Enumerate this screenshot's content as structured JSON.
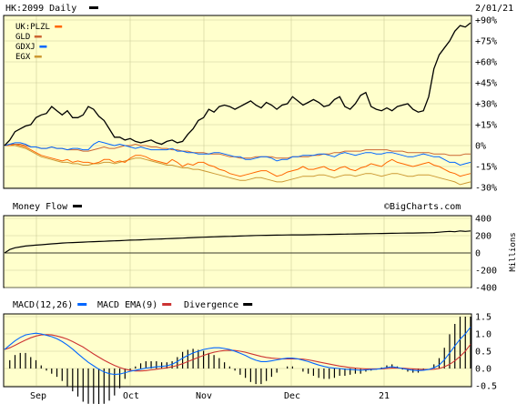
{
  "colors": {
    "panel_bg": "#ffffcc",
    "frame": "#000000",
    "grid": "#cccc99",
    "black": "#000000",
    "orange": "#ff6600",
    "salmon": "#cc6633",
    "blue": "#0066ff",
    "olive": "#cc9933",
    "macd_ema_line": "#cc3333"
  },
  "header": {
    "symbol_label": "HK:2099 Daily",
    "date_label": "2/01/21",
    "watermark": "©BigCharts.com"
  },
  "chart_data": [
    {
      "type": "line",
      "panel": "price",
      "legend": [
        "UK:PLZL",
        "GLD",
        "GDXJ",
        "EGX"
      ],
      "yaxis_labels": [
        "+90%",
        "+75%",
        "+60%",
        "+45%",
        "+30%",
        "+15%",
        "0%",
        "-15%",
        "-30%"
      ],
      "ylim": [
        -30,
        90
      ],
      "xaxis_labels": [
        "Sep",
        "Oct",
        "Nov",
        "Dec",
        "21"
      ],
      "series": [
        {
          "name": "HK:2099",
          "color": "black",
          "values": [
            0,
            4,
            10,
            12,
            14,
            15,
            20,
            22,
            23,
            28,
            25,
            22,
            25,
            20,
            20,
            22,
            28,
            26,
            21,
            18,
            12,
            6,
            6,
            4,
            5,
            3,
            2,
            3,
            4,
            2,
            1,
            3,
            4,
            2,
            3,
            8,
            12,
            18,
            20,
            26,
            24,
            28,
            29,
            28,
            26,
            28,
            30,
            32,
            29,
            27,
            31,
            29,
            26,
            29,
            30,
            35,
            32,
            29,
            31,
            33,
            31,
            28,
            29,
            33,
            35,
            28,
            26,
            30,
            36,
            38,
            28,
            26,
            25,
            27,
            25,
            28,
            29,
            30,
            26,
            24,
            25,
            35,
            55,
            65,
            70,
            75,
            82,
            86,
            85,
            88
          ]
        },
        {
          "name": "UK:PLZL",
          "color": "orange",
          "values": [
            0,
            0,
            1,
            0,
            -1,
            -3,
            -5,
            -7,
            -8,
            -9,
            -10,
            -11,
            -10,
            -12,
            -11,
            -12,
            -12,
            -13,
            -12,
            -10,
            -10,
            -12,
            -11,
            -12,
            -9,
            -7,
            -7,
            -8,
            -10,
            -11,
            -12,
            -13,
            -10,
            -12,
            -15,
            -13,
            -14,
            -12,
            -12,
            -14,
            -15,
            -17,
            -18,
            -20,
            -21,
            -22,
            -21,
            -20,
            -19,
            -18,
            -18,
            -20,
            -22,
            -21,
            -19,
            -18,
            -17,
            -15,
            -17,
            -17,
            -16,
            -15,
            -17,
            -18,
            -16,
            -15,
            -17,
            -18,
            -16,
            -15,
            -13,
            -14,
            -15,
            -12,
            -10,
            -12,
            -13,
            -14,
            -15,
            -14,
            -13,
            -12,
            -14,
            -15,
            -17,
            -19,
            -20,
            -22,
            -21,
            -20
          ]
        },
        {
          "name": "GLD",
          "color": "salmon",
          "values": [
            0,
            1,
            1,
            1,
            0,
            -1,
            -1,
            -2,
            -2,
            -1,
            -2,
            -2,
            -3,
            -3,
            -3,
            -4,
            -4,
            -3,
            -2,
            -1,
            -2,
            -2,
            -1,
            0,
            0,
            1,
            0,
            0,
            -1,
            -1,
            -2,
            -2,
            -3,
            -3,
            -4,
            -4,
            -5,
            -5,
            -5,
            -6,
            -6,
            -6,
            -7,
            -8,
            -8,
            -9,
            -9,
            -9,
            -8,
            -8,
            -8,
            -8,
            -9,
            -9,
            -9,
            -8,
            -8,
            -8,
            -8,
            -7,
            -7,
            -6,
            -6,
            -5,
            -5,
            -4,
            -4,
            -4,
            -4,
            -3,
            -3,
            -3,
            -3,
            -3,
            -4,
            -4,
            -4,
            -5,
            -5,
            -5,
            -5,
            -5,
            -6,
            -6,
            -6,
            -7,
            -7,
            -7,
            -6,
            -6
          ]
        },
        {
          "name": "GDXJ",
          "color": "blue",
          "values": [
            0,
            1,
            2,
            2,
            1,
            -1,
            -1,
            -2,
            -2,
            -1,
            -2,
            -2,
            -3,
            -2,
            -2,
            -3,
            -3,
            1,
            3,
            2,
            1,
            0,
            1,
            0,
            -1,
            -2,
            -1,
            -2,
            -3,
            -3,
            -3,
            -3,
            -2,
            -4,
            -4,
            -5,
            -5,
            -6,
            -6,
            -6,
            -5,
            -5,
            -6,
            -7,
            -8,
            -8,
            -10,
            -10,
            -9,
            -8,
            -8,
            -9,
            -11,
            -10,
            -10,
            -8,
            -8,
            -7,
            -7,
            -7,
            -6,
            -6,
            -7,
            -8,
            -6,
            -5,
            -6,
            -7,
            -6,
            -5,
            -5,
            -6,
            -6,
            -5,
            -5,
            -6,
            -7,
            -8,
            -8,
            -7,
            -6,
            -7,
            -8,
            -8,
            -10,
            -12,
            -12,
            -14,
            -13,
            -12
          ]
        },
        {
          "name": "EGX",
          "color": "olive",
          "values": [
            0,
            0,
            0,
            -1,
            -2,
            -4,
            -6,
            -8,
            -9,
            -10,
            -11,
            -12,
            -12,
            -13,
            -13,
            -14,
            -14,
            -13,
            -13,
            -12,
            -12,
            -13,
            -12,
            -11,
            -10,
            -9,
            -9,
            -10,
            -11,
            -12,
            -13,
            -14,
            -14,
            -15,
            -16,
            -16,
            -17,
            -17,
            -18,
            -19,
            -20,
            -21,
            -22,
            -23,
            -24,
            -25,
            -25,
            -24,
            -23,
            -23,
            -24,
            -25,
            -26,
            -26,
            -25,
            -24,
            -23,
            -22,
            -22,
            -22,
            -21,
            -21,
            -22,
            -23,
            -22,
            -21,
            -21,
            -22,
            -21,
            -20,
            -20,
            -21,
            -22,
            -21,
            -20,
            -20,
            -21,
            -22,
            -22,
            -21,
            -21,
            -21,
            -22,
            -23,
            -24,
            -25,
            -26,
            -28,
            -27,
            -26
          ]
        }
      ]
    },
    {
      "type": "line",
      "panel": "money_flow",
      "title": "Money Flow",
      "yaxis_labels": [
        "400",
        "200",
        "0",
        "-200",
        "-400"
      ],
      "yaxis_unit": "Millions",
      "ylim": [
        -400,
        400
      ],
      "series": [
        {
          "name": "Money Flow",
          "color": "black",
          "values": [
            0,
            40,
            60,
            70,
            80,
            85,
            90,
            95,
            100,
            105,
            110,
            115,
            118,
            120,
            122,
            125,
            128,
            130,
            133,
            135,
            138,
            140,
            142,
            145,
            148,
            150,
            152,
            155,
            158,
            160,
            162,
            165,
            167,
            170,
            172,
            175,
            178,
            180,
            182,
            184,
            186,
            188,
            190,
            192,
            194,
            196,
            198,
            200,
            202,
            203,
            204,
            205,
            206,
            207,
            208,
            209,
            210,
            210,
            211,
            212,
            213,
            214,
            215,
            216,
            217,
            218,
            219,
            220,
            221,
            222,
            223,
            224,
            225,
            226,
            227,
            228,
            229,
            230,
            231,
            232,
            233,
            234,
            236,
            240,
            245,
            250,
            245,
            255,
            250,
            255
          ]
        }
      ]
    },
    {
      "type": "bar",
      "panel": "macd",
      "legend": [
        "MACD(12,26)",
        "MACD EMA(9)",
        "Divergence"
      ],
      "yaxis_labels": [
        "1.5",
        "1.0",
        "0.5",
        "0.0",
        "-0.5"
      ],
      "ylim": [
        -0.5,
        1.5
      ],
      "series": [
        {
          "name": "MACD(12,26)",
          "color": "blue",
          "values": [
            0.55,
            0.68,
            0.8,
            0.9,
            0.97,
            1.0,
            1.02,
            1.0,
            0.96,
            0.92,
            0.86,
            0.78,
            0.68,
            0.56,
            0.43,
            0.3,
            0.18,
            0.08,
            -0.02,
            -0.1,
            -0.15,
            -0.17,
            -0.16,
            -0.12,
            -0.08,
            -0.05,
            -0.02,
            0.01,
            0.03,
            0.05,
            0.06,
            0.08,
            0.12,
            0.2,
            0.3,
            0.38,
            0.45,
            0.5,
            0.55,
            0.58,
            0.6,
            0.6,
            0.58,
            0.55,
            0.5,
            0.44,
            0.38,
            0.3,
            0.24,
            0.2,
            0.2,
            0.22,
            0.25,
            0.28,
            0.3,
            0.3,
            0.28,
            0.24,
            0.2,
            0.15,
            0.1,
            0.06,
            0.03,
            0.01,
            0.0,
            -0.02,
            -0.03,
            -0.04,
            -0.05,
            -0.04,
            -0.03,
            -0.02,
            0.0,
            0.03,
            0.05,
            0.03,
            0.0,
            -0.03,
            -0.05,
            -0.06,
            -0.05,
            -0.03,
            0.02,
            0.1,
            0.25,
            0.45,
            0.65,
            0.85,
            1.0,
            1.2
          ]
        },
        {
          "name": "MACD EMA(9)",
          "color": "macd_ema_line",
          "values": [
            0.55,
            0.6,
            0.67,
            0.75,
            0.82,
            0.89,
            0.94,
            0.97,
            0.98,
            0.97,
            0.94,
            0.9,
            0.85,
            0.78,
            0.7,
            0.62,
            0.52,
            0.42,
            0.33,
            0.24,
            0.16,
            0.09,
            0.03,
            -0.02,
            -0.05,
            -0.07,
            -0.07,
            -0.06,
            -0.04,
            -0.02,
            0.0,
            0.02,
            0.05,
            0.09,
            0.14,
            0.2,
            0.26,
            0.32,
            0.38,
            0.43,
            0.47,
            0.5,
            0.52,
            0.53,
            0.52,
            0.5,
            0.47,
            0.43,
            0.39,
            0.35,
            0.32,
            0.3,
            0.29,
            0.28,
            0.28,
            0.28,
            0.28,
            0.27,
            0.25,
            0.22,
            0.19,
            0.16,
            0.13,
            0.1,
            0.07,
            0.05,
            0.03,
            0.01,
            0.0,
            -0.01,
            -0.01,
            -0.01,
            -0.01,
            0.0,
            0.01,
            0.01,
            0.01,
            0.0,
            -0.01,
            -0.02,
            -0.03,
            -0.03,
            -0.02,
            0.0,
            0.05,
            0.12,
            0.22,
            0.35,
            0.5,
            0.7
          ]
        }
      ]
    }
  ],
  "panels": {
    "money_flow": {
      "title": "Money Flow"
    },
    "macd": {
      "legend_macd": "MACD(12,26)",
      "legend_ema": "MACD EMA(9)",
      "legend_div": "Divergence"
    }
  }
}
